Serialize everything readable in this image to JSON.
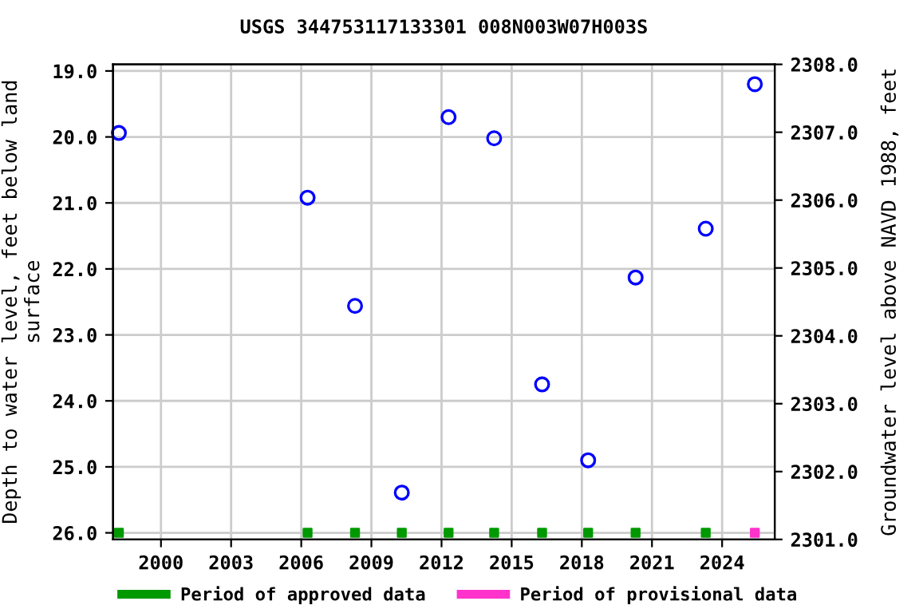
{
  "chart_data": {
    "type": "scatter",
    "title": "USGS 344753117133301 008N003W07H003S",
    "xlabel": null,
    "ylabel": "Depth to water level, feet below land\nsurface",
    "y2label": "Groundwater level above NAVD 1988, feet",
    "xlim": [
      1997.95,
      2026.25
    ],
    "xticks": [
      2000,
      2003,
      2006,
      2009,
      2012,
      2015,
      2018,
      2021,
      2024
    ],
    "ylim": [
      26.1,
      18.9
    ],
    "yticks": [
      {
        "value": 19,
        "label": "19.0"
      },
      {
        "value": 20,
        "label": "20.0"
      },
      {
        "value": 21,
        "label": "21.0"
      },
      {
        "value": 22,
        "label": "22.0"
      },
      {
        "value": 23,
        "label": "23.0"
      },
      {
        "value": 24,
        "label": "24.0"
      },
      {
        "value": 25,
        "label": "25.0"
      },
      {
        "value": 26,
        "label": "26.0"
      }
    ],
    "y2lim": [
      2301.0,
      2308.0
    ],
    "y2ticks": [
      {
        "value": 2301,
        "label": "2301.0"
      },
      {
        "value": 2302,
        "label": "2302.0"
      },
      {
        "value": 2303,
        "label": "2303.0"
      },
      {
        "value": 2304,
        "label": "2304.0"
      },
      {
        "value": 2305,
        "label": "2305.0"
      },
      {
        "value": 2306,
        "label": "2306.0"
      },
      {
        "value": 2307,
        "label": "2307.0"
      },
      {
        "value": 2308,
        "label": "2308.0"
      }
    ],
    "grid": true,
    "legend": "bottom",
    "series": [
      {
        "marker": "circle",
        "color": "#0000ff",
        "x": [
          1998.2,
          2006.27,
          2008.3,
          2010.3,
          2012.3,
          2014.25,
          2016.3,
          2018.27,
          2020.3,
          2023.3,
          2025.4
        ],
        "values": [
          19.94,
          20.92,
          22.56,
          25.39,
          19.7,
          20.02,
          23.75,
          24.9,
          22.13,
          21.39,
          19.2
        ]
      },
      {
        "marker": "square",
        "name": "Period of approved data",
        "color": "#009900",
        "x": [
          1998.2,
          2006.27,
          2008.3,
          2010.3,
          2012.3,
          2014.25,
          2016.3,
          2018.27,
          2020.3,
          2023.3
        ],
        "values": [
          26.0,
          26.0,
          26.0,
          26.0,
          26.0,
          26.0,
          26.0,
          26.0,
          26.0,
          26.0
        ]
      },
      {
        "marker": "square",
        "name": "Period of provisional data",
        "color": "#ff33cc",
        "x": [
          2025.4
        ],
        "values": [
          26.0
        ]
      }
    ]
  }
}
